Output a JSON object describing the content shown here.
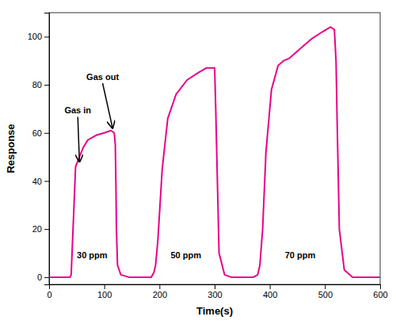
{
  "chart_data": {
    "type": "line",
    "xlabel": "Time(s)",
    "ylabel": "Response",
    "xlim": [
      0,
      600
    ],
    "ylim": [
      -3,
      110
    ],
    "xticks": [
      0,
      100,
      200,
      300,
      400,
      500,
      600
    ],
    "yticks": [
      0,
      20,
      40,
      60,
      80,
      100
    ],
    "x": [
      0,
      38,
      40,
      48,
      55,
      62,
      70,
      85,
      100,
      112,
      118,
      120,
      121,
      122,
      124,
      130,
      145,
      160,
      175,
      185,
      190,
      193,
      197,
      205,
      215,
      230,
      250,
      270,
      285,
      295,
      300,
      302,
      305,
      308,
      318,
      330,
      350,
      360,
      370,
      378,
      382,
      387,
      393,
      403,
      415,
      425,
      435,
      455,
      475,
      495,
      510,
      517,
      520,
      522,
      526,
      535,
      550,
      570,
      590,
      600
    ],
    "series": [
      {
        "color": "#E8008A",
        "values": [
          0,
          0,
          1,
          46,
          50,
          54,
          57,
          59,
          60,
          61,
          60,
          55,
          40,
          20,
          5,
          1,
          0,
          0,
          0,
          0,
          2,
          5,
          15,
          45,
          66,
          76,
          82,
          85,
          87,
          87,
          87,
          70,
          40,
          10,
          1,
          0,
          0,
          0,
          0,
          1,
          5,
          20,
          52,
          78,
          88,
          90,
          91,
          95,
          99,
          102,
          104,
          103,
          90,
          65,
          20,
          3,
          0,
          0,
          0,
          0
        ]
      }
    ],
    "annotations": [
      {
        "text": "30 ppm",
        "x": 78,
        "y": 8
      },
      {
        "text": "50 ppm",
        "x": 248,
        "y": 8
      },
      {
        "text": "70 ppm",
        "x": 455,
        "y": 8
      },
      {
        "text": "Gas in",
        "x": 52,
        "y": 68,
        "arrow_x": 55,
        "arrow_y": 48
      },
      {
        "text": "Gas out",
        "x": 97,
        "y": 82,
        "arrow_x": 115,
        "arrow_y": 62
      }
    ]
  }
}
